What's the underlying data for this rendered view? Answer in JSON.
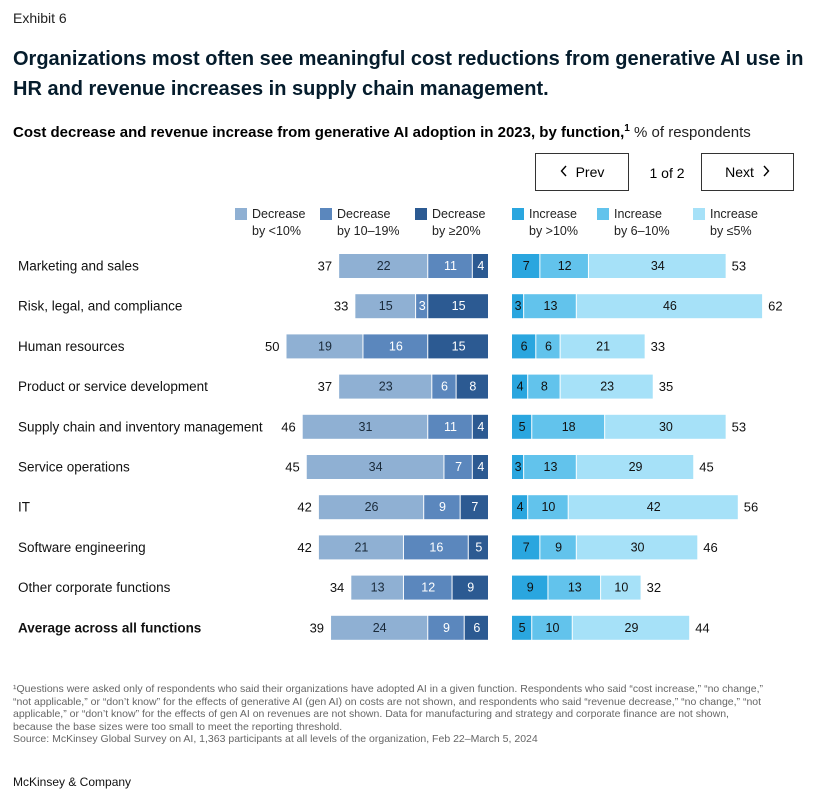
{
  "header": {
    "exhibit": "Exhibit 6",
    "title": "Organizations most often see meaningful cost reductions from generative AI use in HR and revenue increases in supply chain management.",
    "subtitle": "Cost decrease and revenue increase from generative AI adoption in 2023, by function,",
    "subtitle_sup": "1",
    "subtitle_unit": " % of respondents"
  },
  "pager": {
    "prev_label": "Prev",
    "next_label": "Next",
    "page_text": "1 of 2",
    "prev_icon": "chevron-left-icon",
    "next_icon": "chevron-right-icon"
  },
  "chart_data": {
    "type": "bar",
    "categories": [
      "Marketing and sales",
      "Risk, legal, and compliance",
      "Human resources",
      "Product or service development",
      "Supply chain and inventory management",
      "Service operations",
      "IT",
      "Software engineering",
      "Other corporate functions",
      "Average across all functions"
    ],
    "decrease_series": [
      {
        "name": "Decrease by <10%",
        "label_lines": [
          "Decrease",
          "by <10%"
        ],
        "color": "#8fb0d3",
        "values": [
          22,
          15,
          19,
          23,
          31,
          34,
          26,
          21,
          13,
          24
        ]
      },
      {
        "name": "Decrease by 10–19%",
        "label_lines": [
          "Decrease",
          "by 10–19%"
        ],
        "color": "#5b87bd",
        "values": [
          11,
          3,
          16,
          6,
          11,
          7,
          9,
          16,
          12,
          9
        ]
      },
      {
        "name": "Decrease by ≥20%",
        "label_lines": [
          "Decrease",
          "by ≥20%"
        ],
        "color": "#2c5a92",
        "values": [
          4,
          15,
          15,
          8,
          4,
          4,
          7,
          5,
          9,
          6
        ]
      }
    ],
    "decrease_totals": [
      37,
      33,
      50,
      37,
      46,
      45,
      42,
      42,
      34,
      39
    ],
    "increase_series": [
      {
        "name": "Increase by >10%",
        "label_lines": [
          "Increase",
          "by >10%"
        ],
        "color": "#2aa6df",
        "values": [
          7,
          3,
          6,
          4,
          5,
          3,
          4,
          7,
          9,
          5
        ]
      },
      {
        "name": "Increase by 6–10%",
        "label_lines": [
          "Increase",
          "by 6–10%"
        ],
        "color": "#62c3ec",
        "values": [
          12,
          13,
          6,
          8,
          18,
          13,
          10,
          9,
          13,
          10
        ]
      },
      {
        "name": "Increase by ≤5%",
        "label_lines": [
          "Increase",
          "by ≤5%"
        ],
        "color": "#a6e1f8",
        "values": [
          34,
          46,
          21,
          23,
          30,
          29,
          42,
          30,
          10,
          29
        ]
      }
    ],
    "increase_totals": [
      53,
      62,
      33,
      35,
      53,
      45,
      56,
      46,
      32,
      44
    ],
    "bold_category": "Average across all functions",
    "xlabel": "",
    "ylabel": "",
    "legend_position": "top",
    "grid": false
  },
  "footnote": {
    "line1": "¹Questions were asked only of respondents who said their organizations have adopted AI in a given function. Respondents who said “cost increase,” “no change,”",
    "line2": "“not applicable,” or “don’t know” for the effects of generative AI (gen AI) on costs are not shown, and respondents who said “revenue decrease,” “no change,” “not",
    "line3": "applicable,” or “don’t know” for the effects of gen AI on revenues are not shown. Data for manufacturing and strategy and corporate finance are not shown,",
    "line4": "because the base sizes were too small to meet the reporting threshold.",
    "source": "Source: McKinsey Global Survey on AI, 1,363 participants at all levels of the organization, Feb 22–March 5, 2024"
  },
  "brand": "McKinsey & Company"
}
